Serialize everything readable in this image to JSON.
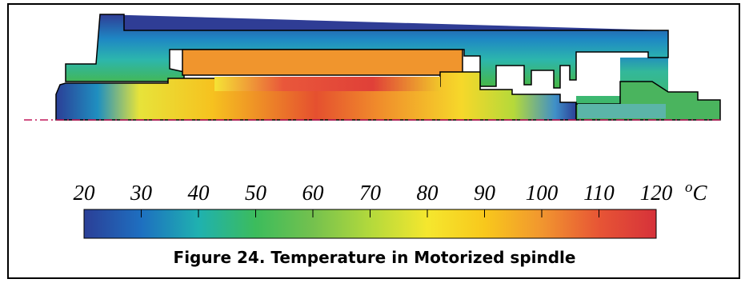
{
  "caption": "Figure 24. Temperature in Motorized spindle",
  "colorbar": {
    "unit_label": "o",
    "unit_letter": "C",
    "ticks": [
      20,
      30,
      40,
      50,
      60,
      70,
      80,
      90,
      100,
      110,
      120
    ],
    "min": 20,
    "max": 120,
    "colormap": [
      "#2b3f97",
      "#1e6fc0",
      "#1fb1b0",
      "#3cbc5c",
      "#74c14e",
      "#b3d93c",
      "#f5e72e",
      "#f8c81c",
      "#f1962f",
      "#e75535",
      "#d6323a"
    ]
  },
  "colors": {
    "outline": "#000000",
    "centerline": "#c2185b",
    "rotor_orange": "#f0952d"
  }
}
